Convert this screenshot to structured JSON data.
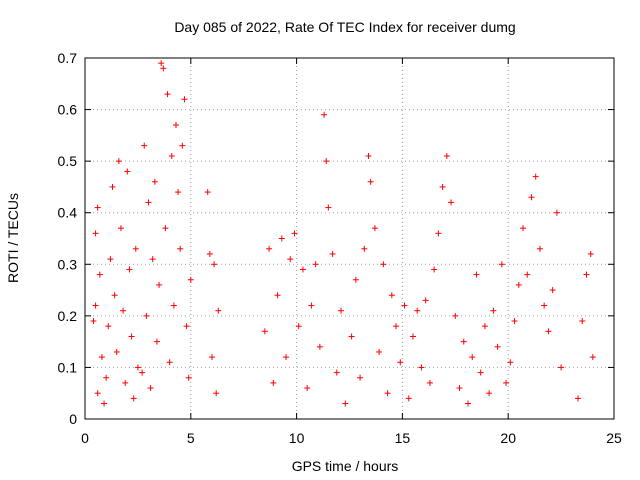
{
  "chart_data": {
    "type": "scatter",
    "title": "Day 085 of 2022, Rate Of TEC Index for receiver dumg",
    "xlabel": "GPS time / hours",
    "ylabel": "ROTI / TECUs",
    "xlim": [
      0,
      25
    ],
    "ylim": [
      0,
      0.7
    ],
    "x_ticks": [
      "0",
      "5",
      "10",
      "15",
      "20",
      "25"
    ],
    "y_ticks": [
      "0",
      "0.1",
      "0.2",
      "0.3",
      "0.4",
      "0.5",
      "0.6",
      "0.7"
    ],
    "x_tick_values": [
      0,
      5,
      10,
      15,
      20,
      25
    ],
    "y_tick_values": [
      0,
      0.1,
      0.2,
      0.3,
      0.4,
      0.5,
      0.6,
      0.7
    ],
    "grid": true,
    "marker": "+",
    "color": "#ff0000",
    "series": [
      {
        "values": [
          [
            0.4,
            0.19
          ],
          [
            0.5,
            0.36
          ],
          [
            0.5,
            0.22
          ],
          [
            0.6,
            0.41
          ],
          [
            0.6,
            0.05
          ],
          [
            0.7,
            0.28
          ],
          [
            0.8,
            0.12
          ],
          [
            0.9,
            0.03
          ],
          [
            1.0,
            0.08
          ],
          [
            1.1,
            0.18
          ],
          [
            1.2,
            0.31
          ],
          [
            1.3,
            0.45
          ],
          [
            1.4,
            0.24
          ],
          [
            1.5,
            0.13
          ],
          [
            1.6,
            0.5
          ],
          [
            1.7,
            0.37
          ],
          [
            1.8,
            0.21
          ],
          [
            1.9,
            0.07
          ],
          [
            2.0,
            0.48
          ],
          [
            2.1,
            0.29
          ],
          [
            2.2,
            0.16
          ],
          [
            2.3,
            0.04
          ],
          [
            2.4,
            0.33
          ],
          [
            2.5,
            0.1
          ],
          [
            2.7,
            0.09
          ],
          [
            2.8,
            0.53
          ],
          [
            2.9,
            0.2
          ],
          [
            3.0,
            0.42
          ],
          [
            3.1,
            0.06
          ],
          [
            3.2,
            0.31
          ],
          [
            3.3,
            0.46
          ],
          [
            3.4,
            0.15
          ],
          [
            3.5,
            0.26
          ],
          [
            3.6,
            0.69
          ],
          [
            3.7,
            0.68
          ],
          [
            3.8,
            0.37
          ],
          [
            3.9,
            0.63
          ],
          [
            4.0,
            0.11
          ],
          [
            4.1,
            0.51
          ],
          [
            4.2,
            0.22
          ],
          [
            4.3,
            0.57
          ],
          [
            4.4,
            0.44
          ],
          [
            4.5,
            0.33
          ],
          [
            4.6,
            0.53
          ],
          [
            4.7,
            0.62
          ],
          [
            4.8,
            0.18
          ],
          [
            4.9,
            0.08
          ],
          [
            5.0,
            0.27
          ],
          [
            5.8,
            0.44
          ],
          [
            5.9,
            0.32
          ],
          [
            6.0,
            0.12
          ],
          [
            6.1,
            0.3
          ],
          [
            6.2,
            0.05
          ],
          [
            6.3,
            0.21
          ],
          [
            8.5,
            0.17
          ],
          [
            8.7,
            0.33
          ],
          [
            8.9,
            0.07
          ],
          [
            9.1,
            0.24
          ],
          [
            9.3,
            0.35
          ],
          [
            9.5,
            0.12
          ],
          [
            9.7,
            0.31
          ],
          [
            9.9,
            0.36
          ],
          [
            10.1,
            0.18
          ],
          [
            10.3,
            0.29
          ],
          [
            10.5,
            0.06
          ],
          [
            10.7,
            0.22
          ],
          [
            10.9,
            0.3
          ],
          [
            11.1,
            0.14
          ],
          [
            11.3,
            0.59
          ],
          [
            11.4,
            0.5
          ],
          [
            11.5,
            0.41
          ],
          [
            11.7,
            0.32
          ],
          [
            11.9,
            0.09
          ],
          [
            12.1,
            0.21
          ],
          [
            12.3,
            0.03
          ],
          [
            12.6,
            0.16
          ],
          [
            12.8,
            0.27
          ],
          [
            13.0,
            0.08
          ],
          [
            13.2,
            0.33
          ],
          [
            13.4,
            0.51
          ],
          [
            13.5,
            0.46
          ],
          [
            13.7,
            0.37
          ],
          [
            13.9,
            0.13
          ],
          [
            14.1,
            0.3
          ],
          [
            14.3,
            0.05
          ],
          [
            14.5,
            0.24
          ],
          [
            14.7,
            0.18
          ],
          [
            14.9,
            0.11
          ],
          [
            15.1,
            0.22
          ],
          [
            15.3,
            0.04
          ],
          [
            15.5,
            0.16
          ],
          [
            15.7,
            0.21
          ],
          [
            15.9,
            0.1
          ],
          [
            16.1,
            0.23
          ],
          [
            16.3,
            0.07
          ],
          [
            16.5,
            0.29
          ],
          [
            16.7,
            0.36
          ],
          [
            16.9,
            0.45
          ],
          [
            17.1,
            0.51
          ],
          [
            17.3,
            0.42
          ],
          [
            17.5,
            0.2
          ],
          [
            17.7,
            0.06
          ],
          [
            17.9,
            0.15
          ],
          [
            18.1,
            0.03
          ],
          [
            18.3,
            0.12
          ],
          [
            18.5,
            0.28
          ],
          [
            18.7,
            0.09
          ],
          [
            18.9,
            0.18
          ],
          [
            19.1,
            0.05
          ],
          [
            19.3,
            0.21
          ],
          [
            19.5,
            0.14
          ],
          [
            19.7,
            0.3
          ],
          [
            19.9,
            0.07
          ],
          [
            20.1,
            0.11
          ],
          [
            20.3,
            0.19
          ],
          [
            20.5,
            0.26
          ],
          [
            20.7,
            0.37
          ],
          [
            20.9,
            0.28
          ],
          [
            21.1,
            0.43
          ],
          [
            21.3,
            0.47
          ],
          [
            21.5,
            0.33
          ],
          [
            21.7,
            0.22
          ],
          [
            21.9,
            0.17
          ],
          [
            22.1,
            0.25
          ],
          [
            22.3,
            0.4
          ],
          [
            22.5,
            0.1
          ],
          [
            23.3,
            0.04
          ],
          [
            23.5,
            0.19
          ],
          [
            23.7,
            0.28
          ],
          [
            23.9,
            0.32
          ],
          [
            24.0,
            0.12
          ]
        ]
      }
    ]
  }
}
